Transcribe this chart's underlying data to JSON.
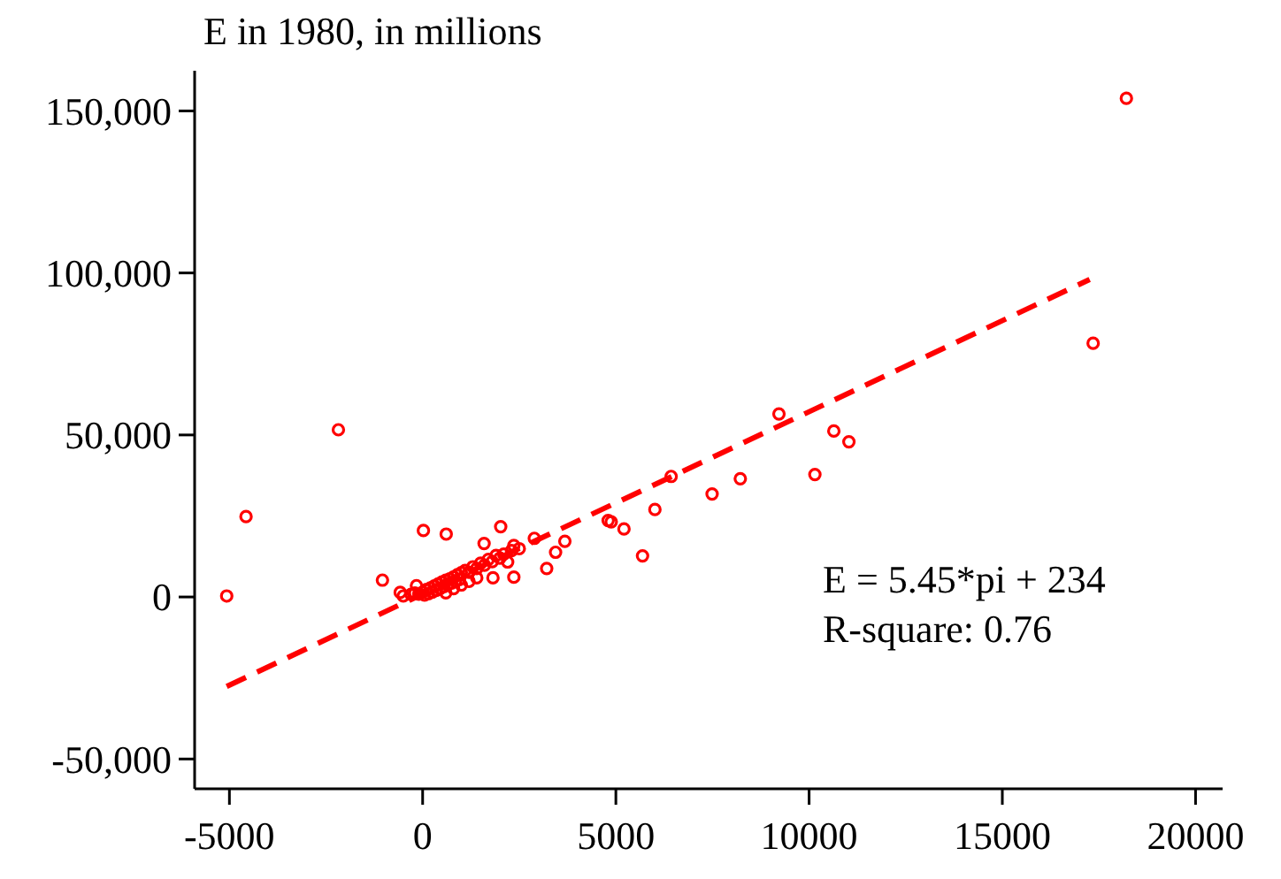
{
  "chart_data": {
    "type": "scatter",
    "ylabel": "E in 1980, in millions",
    "xlim": [
      -5900,
      20700
    ],
    "ylim": [
      -59200,
      162400
    ],
    "xticks": [
      -5000,
      0,
      5000,
      10000,
      15000,
      20000
    ],
    "yticks": [
      {
        "value": -50000,
        "label": "-50,000"
      },
      {
        "value": 0,
        "label": "0"
      },
      {
        "value": 50000,
        "label": "50,000"
      },
      {
        "value": 100000,
        "label": "100,000"
      },
      {
        "value": 150000,
        "label": "150,000"
      }
    ],
    "grid": false,
    "annotations": [
      "E = 5.45*pi + 234",
      "R-square: 0.76"
    ],
    "series": [
      {
        "color": "#ff0000",
        "marker": "circle",
        "x": [
          -5070,
          -4570,
          -2180,
          -1040,
          20,
          610,
          18210,
          17350,
          9220,
          10640,
          11030,
          10150,
          8220,
          7490,
          6430,
          6010,
          5210,
          4800,
          5690,
          2020,
          2890,
          3210,
          3680,
          3440,
          2360,
          4880,
          -580,
          -160,
          1590,
          2360,
          1820,
          -500,
          -300,
          -200,
          -100,
          0,
          50,
          100,
          150,
          200,
          250,
          300,
          350,
          400,
          450,
          500,
          550,
          600,
          650,
          700,
          750,
          800,
          850,
          900,
          950,
          1000,
          1100,
          1200,
          1300,
          1400,
          1500,
          1600,
          1700,
          1800,
          1900,
          2000,
          2100,
          2200,
          2300,
          2500,
          600,
          800,
          1000,
          1200,
          1400
        ],
        "values": [
          300,
          24800,
          51600,
          5200,
          20500,
          19400,
          153900,
          78300,
          56500,
          51200,
          47900,
          37800,
          36500,
          31800,
          37200,
          27000,
          21000,
          23600,
          12700,
          21700,
          18100,
          8800,
          17200,
          13800,
          6100,
          23200,
          1400,
          3500,
          16500,
          15900,
          5900,
          300,
          800,
          1200,
          900,
          1500,
          600,
          2300,
          1000,
          2800,
          1500,
          3400,
          2000,
          4000,
          2600,
          4600,
          3200,
          5200,
          3800,
          5600,
          4300,
          6200,
          4900,
          6900,
          5400,
          7500,
          8200,
          7600,
          9300,
          8800,
          10400,
          9800,
          11600,
          10900,
          12800,
          12000,
          13200,
          10800,
          14300,
          14900,
          1300,
          2600,
          3700,
          4800,
          5900
        ]
      },
      {
        "type": "line",
        "color": "#ff0000",
        "line_style": "dashed",
        "x": [
          -5070,
          17260
        ],
        "values": [
          -27600,
          98000
        ]
      }
    ]
  }
}
